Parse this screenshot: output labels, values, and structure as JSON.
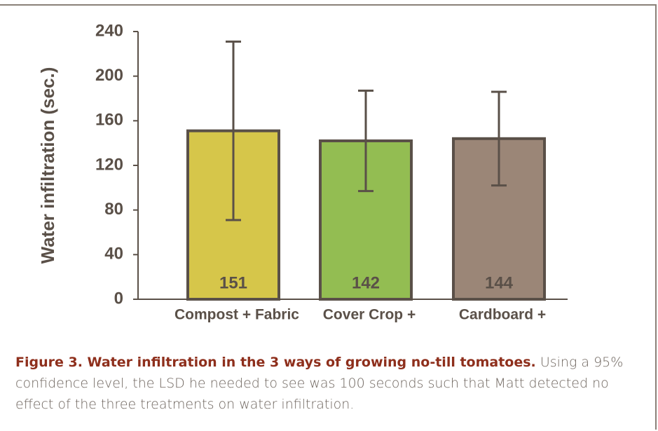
{
  "chart_data": {
    "type": "bar",
    "ylabel": "Water infiltration (sec.)",
    "categories": [
      "Compost + Fabric",
      "Cover Crop +",
      "Cardboard +"
    ],
    "values": [
      151,
      142,
      144
    ],
    "errors": [
      80,
      45,
      42
    ],
    "colors": [
      "#d6c64a",
      "#93bd52",
      "#9b8677"
    ],
    "ylim": [
      0,
      240
    ],
    "yticks": [
      0,
      40,
      80,
      120,
      160,
      200,
      240
    ],
    "grid": false
  },
  "caption": {
    "title": "Figure 3. Water infiltration in the 3 ways of growing no-till tomatoes.",
    "text": "Using a 95% confidence level, the LSD he needed to see was 100 seconds such that Matt detected no effect of the three treatments on water infiltration."
  }
}
